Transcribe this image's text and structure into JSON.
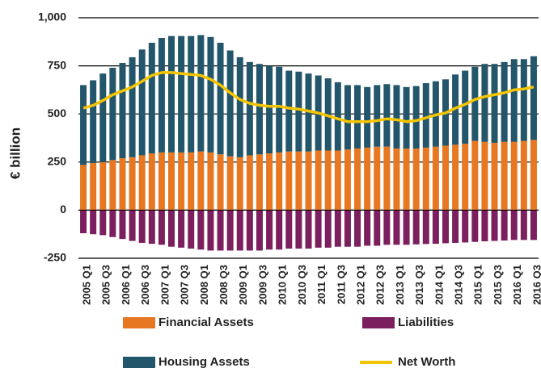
{
  "chart_data": {
    "type": "bar",
    "ylabel": "€ billion",
    "categories": [
      "2005 Q1",
      null,
      "2005 Q3",
      null,
      "2006 Q1",
      null,
      "2006 Q3",
      null,
      "2007 Q1",
      null,
      "2007 Q3",
      null,
      "2008 Q1",
      null,
      "2008 Q3",
      null,
      "2009 Q1",
      null,
      "2009 Q3",
      null,
      "2010 Q1",
      null,
      "2010 Q3",
      null,
      "2011 Q1",
      null,
      "2011 Q3",
      null,
      "2012 Q1",
      null,
      "2012 Q3",
      null,
      "2013 Q1",
      null,
      "2013 Q3",
      null,
      "2014 Q1",
      null,
      "2014 Q3",
      null,
      "2015 Q1",
      null,
      "2015 Q3",
      null,
      "2016 Q1",
      null,
      "2016 Q3"
    ],
    "series": [
      {
        "name": "Financial Assets",
        "type": "bar",
        "color": "#e87722",
        "values": [
          235,
          245,
          250,
          260,
          270,
          275,
          285,
          295,
          300,
          300,
          300,
          300,
          305,
          300,
          290,
          280,
          275,
          285,
          290,
          295,
          300,
          305,
          305,
          305,
          310,
          310,
          310,
          315,
          320,
          325,
          330,
          330,
          320,
          320,
          320,
          325,
          330,
          335,
          340,
          345,
          360,
          355,
          350,
          355,
          355,
          360,
          365
        ]
      },
      {
        "name": "Liabilities",
        "type": "bar",
        "color": "#7b1f5f",
        "values": [
          -120,
          -125,
          -130,
          -140,
          -150,
          -160,
          -170,
          -175,
          -180,
          -190,
          -195,
          -200,
          -205,
          -210,
          -210,
          -210,
          -210,
          -210,
          -210,
          -205,
          -205,
          -200,
          -200,
          -200,
          -195,
          -195,
          -190,
          -190,
          -190,
          -185,
          -185,
          -180,
          -180,
          -180,
          -178,
          -176,
          -175,
          -172,
          -170,
          -168,
          -165,
          -162,
          -160,
          -158,
          -155,
          -155,
          -155
        ]
      },
      {
        "name": "Housing Assets",
        "type": "bar",
        "color": "#23566b",
        "values": [
          415,
          430,
          460,
          480,
          495,
          520,
          550,
          575,
          595,
          605,
          605,
          605,
          605,
          600,
          580,
          550,
          520,
          485,
          470,
          455,
          445,
          420,
          415,
          405,
          390,
          375,
          355,
          335,
          330,
          315,
          320,
          325,
          330,
          320,
          325,
          335,
          340,
          345,
          365,
          380,
          385,
          405,
          410,
          415,
          430,
          425,
          435
        ]
      },
      {
        "name": "Net Worth",
        "type": "line",
        "color": "#f5c400",
        "values": [
          530,
          545,
          570,
          600,
          620,
          640,
          670,
          700,
          715,
          715,
          710,
          705,
          700,
          680,
          650,
          610,
          575,
          555,
          545,
          540,
          540,
          530,
          525,
          515,
          505,
          490,
          475,
          460,
          460,
          460,
          465,
          475,
          470,
          460,
          465,
          480,
          495,
          505,
          530,
          550,
          575,
          590,
          600,
          610,
          625,
          630,
          640
        ]
      }
    ],
    "ylim": [
      -250,
      1000
    ],
    "yticks": [
      -250,
      0,
      250,
      500,
      750,
      {
        "value": 1000,
        "label": "1,000"
      }
    ],
    "grid": true
  }
}
